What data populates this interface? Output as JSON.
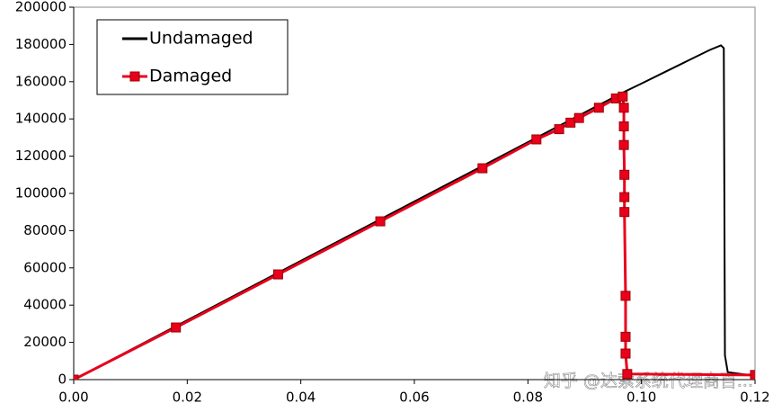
{
  "chart_data": {
    "type": "line",
    "xlim": [
      0,
      0.12
    ],
    "ylim": [
      0,
      200000
    ],
    "xticks": [
      {
        "value": 0,
        "label": "0.00"
      },
      {
        "value": 0.02,
        "label": "0.02"
      },
      {
        "value": 0.04,
        "label": "0.04"
      },
      {
        "value": 0.06,
        "label": "0.06"
      },
      {
        "value": 0.08,
        "label": "0.08"
      },
      {
        "value": 0.1,
        "label": "0.10"
      },
      {
        "value": 0.12,
        "label": "0.12"
      }
    ],
    "yticks": [
      0,
      20000,
      40000,
      60000,
      80000,
      100000,
      120000,
      140000,
      160000,
      180000,
      200000
    ],
    "legend": "top-left",
    "watermark": "知乎 @达索系统代理商百...",
    "series": [
      {
        "name": "Undamaged",
        "color": "#000000",
        "marker": "none",
        "x": [
          0,
          0.0966,
          0.1,
          0.104,
          0.108,
          0.112,
          0.114,
          0.1145,
          0.1146,
          0.1147,
          0.1152,
          0.12
        ],
        "values": [
          0,
          154000,
          159000,
          165000,
          171000,
          177000,
          179500,
          178000,
          100000,
          13000,
          4000,
          2000
        ]
      },
      {
        "name": "Damaged",
        "color": "#e8001c",
        "marker": "square",
        "x": [
          0,
          0.018,
          0.036,
          0.054,
          0.072,
          0.0815,
          0.0855,
          0.0875,
          0.089,
          0.0925,
          0.0955,
          0.0967,
          0.0969,
          0.0969,
          0.0969,
          0.097,
          0.097,
          0.097,
          0.0972,
          0.0972,
          0.0972,
          0.0975,
          0.12
        ],
        "values": [
          0,
          28000,
          56500,
          85000,
          113500,
          129000,
          134500,
          138000,
          140500,
          146000,
          151000,
          152000,
          146000,
          136000,
          126000,
          110000,
          98000,
          90000,
          45000,
          23000,
          14000,
          3000,
          2500
        ]
      }
    ]
  }
}
